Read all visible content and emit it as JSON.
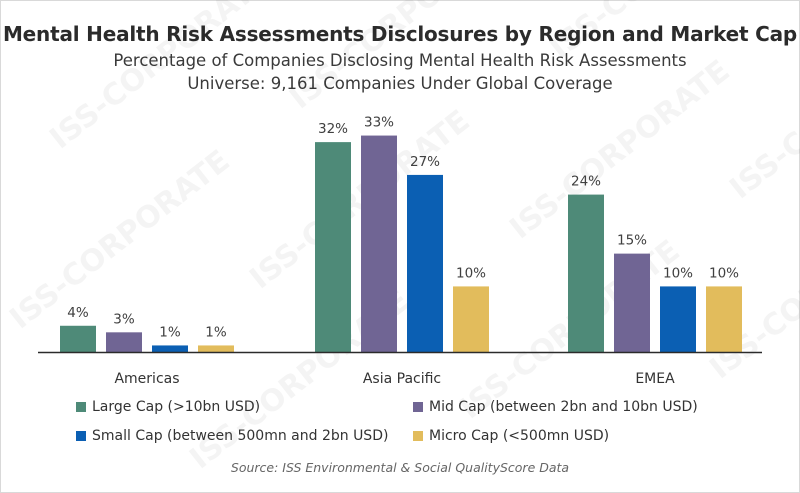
{
  "chart_data": {
    "type": "bar",
    "title": "Mental Health Risk Assessments Disclosures by Region and Market Cap",
    "subtitle": "Percentage of Companies Disclosing Mental Health Risk Assessments",
    "subtitle2": "Universe: 9,161 Companies Under Global Coverage",
    "categories": [
      "Americas",
      "Asia Pacific",
      "EMEA"
    ],
    "series": [
      {
        "name": "Large Cap (>10bn USD)",
        "color": "#4e8a78",
        "values": [
          4,
          32,
          24
        ],
        "labels": [
          "4%",
          "32%",
          "24%"
        ]
      },
      {
        "name": "Mid Cap (between 2bn and 10bn USD)",
        "color": "#706594",
        "values": [
          3,
          33,
          15
        ],
        "labels": [
          "3%",
          "33%",
          "15%"
        ]
      },
      {
        "name": "Small Cap (between 500mn and 2bn USD)",
        "color": "#0b5fb3",
        "values": [
          1,
          27,
          10
        ],
        "labels": [
          "1%",
          "27%",
          "10%"
        ]
      },
      {
        "name": "Micro Cap (<500mn USD)",
        "color": "#e2bc5c",
        "values": [
          1,
          10,
          10
        ],
        "labels": [
          "1%",
          "10%",
          "10%"
        ]
      }
    ],
    "ylim": [
      0,
      34
    ],
    "grid": false,
    "legend": "bottom",
    "source": "Source: ISS Environmental & Social QualityScore Data"
  },
  "watermark": "ISS-CORPORATE"
}
